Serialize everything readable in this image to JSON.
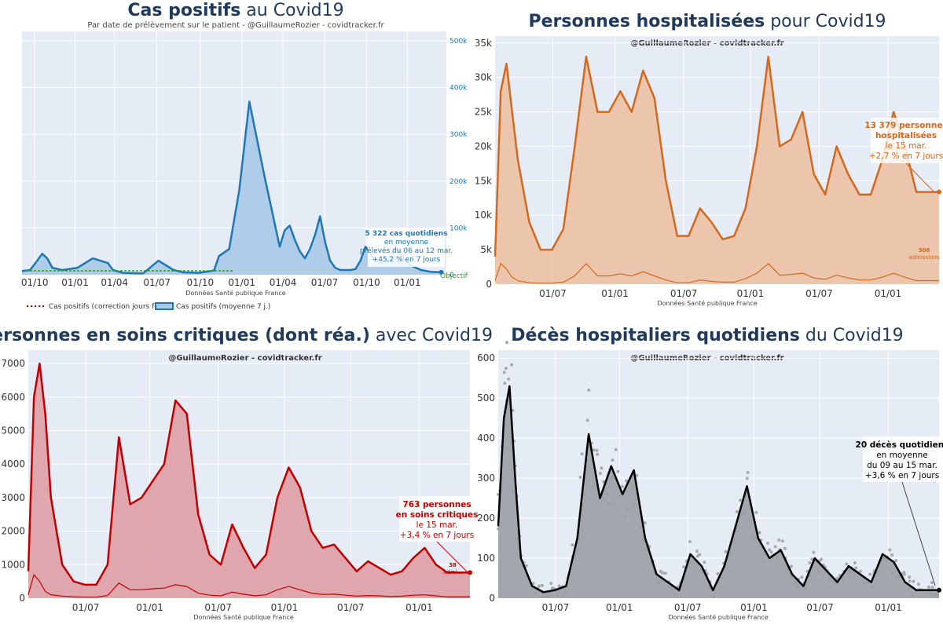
{
  "colors": {
    "panel_bg": "#e5ecf6",
    "grid": "#ffffff",
    "cases": "#1f77b4",
    "cases_fill": "#a9c9e8",
    "hosp": "#d2691e",
    "hosp_fill": "#ecc0a0",
    "icu": "#c00000",
    "icu_fill": "#df9aa0",
    "deaths": "#000000",
    "deaths_fill": "#9a9ea5",
    "deaths_dots": "#a9a9b0",
    "objective": "#2ca02c",
    "title": "#1f3a5c"
  },
  "panels": {
    "cases": {
      "title_bold": "Cas positifs",
      "title_rest": " au Covid19",
      "subtitle": "Par date de prélèvement sur le patient - @GuillaumeRozier - covidtracker.fr",
      "source": "Données Santé publique France",
      "objective_label": "Objectif",
      "legend": [
        "Cas positifs (correction jours fériés)",
        "Cas positifs (moyenne 7 j.)"
      ],
      "annotation": [
        "5 322 cas quotidiens",
        "en moyenne",
        "prélevés du 06 au 12 mar.",
        "+45,2 % en 7 jours"
      ],
      "chart_data": {
        "type": "area",
        "x_ticks": [
          "01/10",
          "01/01",
          "01/04",
          "01/07",
          "01/10",
          "01/01",
          "01/04",
          "01/07",
          "01/10",
          "01/01"
        ],
        "y_ticks": [
          "0",
          "100k",
          "200k",
          "300k",
          "400k",
          "500k"
        ],
        "y_axis_side": "right",
        "ylim": [
          0,
          520000
        ],
        "series": [
          {
            "name": "Cas positifs (moyenne 7 j.)",
            "x": [
              0,
              8,
              15,
              20,
              25,
              30,
              40,
              55,
              70,
              85,
              90,
              100,
              120,
              135,
              150,
              160,
              175,
              190,
              195,
              205,
              215,
              225,
              240,
              255,
              260,
              265,
              270,
              275,
              280,
              285,
              290,
              295,
              300,
              305,
              310,
              315,
              320,
              325,
              330,
              335,
              340,
              345,
              350,
              355,
              360,
              365,
              370,
              375,
              380,
              385,
              390,
              395,
              400,
              405,
              415,
              430,
              440,
              450,
              460,
              470,
              480,
              490,
              498
            ],
            "values": [
              8000,
              10000,
              30000,
              45000,
              35000,
              15000,
              10000,
              15000,
              35000,
              25000,
              10000,
              4000,
              3000,
              30000,
              10000,
              5000,
              4000,
              9000,
              40000,
              55000,
              180000,
              370000,
              210000,
              60000,
              95000,
              105000,
              75000,
              50000,
              35000,
              55000,
              85000,
              125000,
              70000,
              30000,
              15000,
              10000,
              10000,
              10000,
              12000,
              30000,
              60000,
              45000,
              30000,
              25000,
              30000,
              40000,
              60000,
              45000,
              30000,
              20000,
              15000,
              10000,
              8000,
              6000,
              5322,
              5322,
              5322,
              5322,
              5322,
              5322,
              5322,
              5322,
              5322
            ]
          }
        ]
      }
    },
    "hosp": {
      "title_bold": "Personnes hospitalisées",
      "title_rest": " pour Covid19",
      "credit": "@GuillaumeRozier - covidtracker.fr",
      "source": "Données Santé publique France",
      "annotation": [
        "13 379 personnes",
        "hospitalisées",
        "le 15 mar.",
        "+2,7 % en 7 jours"
      ],
      "admissions_label": [
        "508",
        "admissions"
      ],
      "chart_data": {
        "type": "area",
        "x_ticks": [
          "01/07",
          "01/01",
          "01/07",
          "01/01",
          "01/07",
          "01/01"
        ],
        "y_ticks": [
          "0",
          "5k",
          "10k",
          "15k",
          "20k",
          "25k",
          "30k",
          "35k"
        ],
        "ylim": [
          0,
          36000
        ],
        "series": [
          {
            "name": "Hospitalisations",
            "x": [
              0,
              5,
              10,
              15,
              20,
              30,
              40,
              50,
              60,
              70,
              80,
              90,
              100,
              110,
              120,
              130,
              140,
              150,
              160,
              170,
              180,
              190,
              200,
              210,
              220,
              230,
              240,
              250,
              260,
              270,
              280,
              290,
              300,
              310,
              320,
              330,
              340,
              350,
              360,
              370,
              380,
              390,
              400,
              410,
              420,
              430,
              440,
              450,
              460,
              470,
              480,
              490,
              500
            ],
            "values": [
              4000,
              28000,
              32000,
              25000,
              18000,
              9000,
              5000,
              5000,
              8000,
              20000,
              33000,
              25000,
              25000,
              28000,
              25000,
              31000,
              27000,
              15000,
              7000,
              7000,
              11000,
              9000,
              6500,
              7000,
              11000,
              20000,
              33000,
              20000,
              21000,
              25000,
              16000,
              13000,
              20000,
              16000,
              13000,
              13000,
              18000,
              25000,
              20000,
              13379,
              13379,
              13379,
              13379,
              13379,
              13379,
              13379,
              13379,
              13379,
              13379,
              13379,
              13379,
              13379,
              13379
            ]
          },
          {
            "name": "Admissions",
            "values": [
              500,
              3000,
              2200,
              1000,
              500,
              200,
              150,
              150,
              300,
              1200,
              3000,
              1200,
              1200,
              1500,
              1200,
              1800,
              1200,
              600,
              200,
              200,
              600,
              400,
              300,
              300,
              800,
              1600,
              3000,
              1300,
              1400,
              1600,
              900,
              700,
              1300,
              900,
              600,
              600,
              1000,
              1600,
              1000,
              508,
              508,
              508,
              508,
              508,
              508,
              508,
              508,
              508,
              508,
              508,
              508,
              508,
              508
            ]
          }
        ]
      }
    },
    "icu": {
      "title_bold": "Personnes en soins critiques (dont réa.)",
      "title_rest": " avec Covid19",
      "credit": "@GuillaumeRozier - covidtracker.fr",
      "source": "Données Santé publique France",
      "annotation": [
        "763 personnes",
        "en soins critiques",
        "le 15 mar.",
        "+3,4 % en 7 jours"
      ],
      "admissions_label": [
        "38",
        "admi..."
      ],
      "chart_data": {
        "type": "area",
        "x_ticks": [
          "01/07",
          "01/01",
          "01/07",
          "01/01",
          "01/07",
          "01/01"
        ],
        "y_ticks": [
          "0",
          "1000",
          "2000",
          "3000",
          "4000",
          "5000",
          "6000",
          "7000"
        ],
        "ylim": [
          0,
          7400
        ],
        "series": [
          {
            "name": "Soins critiques",
            "x": [
              0,
              5,
              10,
              15,
              20,
              30,
              40,
              50,
              60,
              70,
              80,
              90,
              100,
              110,
              120,
              130,
              140,
              150,
              160,
              170,
              180,
              190,
              200,
              210,
              220,
              230,
              240,
              250,
              260,
              270,
              280,
              290,
              300,
              310,
              320,
              330,
              340,
              350,
              360,
              370,
              380,
              390,
              400,
              410,
              420,
              430,
              440,
              450,
              460,
              470,
              480,
              490,
              500
            ],
            "values": [
              800,
              6000,
              7000,
              5500,
              3000,
              1000,
              500,
              400,
              400,
              1000,
              4800,
              2800,
              3000,
              3500,
              4000,
              5900,
              5500,
              2500,
              1300,
              1000,
              2200,
              1500,
              900,
              1300,
              3000,
              3900,
              3300,
              2000,
              1500,
              1600,
              1200,
              800,
              1100,
              900,
              700,
              800,
              1200,
              1500,
              1000,
              763,
              763,
              763,
              763,
              763,
              763,
              763,
              763,
              763,
              763,
              763,
              763,
              763,
              763
            ]
          },
          {
            "name": "Admissions",
            "values": [
              100,
              700,
              500,
              200,
              100,
              60,
              40,
              30,
              30,
              80,
              450,
              250,
              250,
              280,
              300,
              400,
              350,
              150,
              90,
              70,
              180,
              120,
              70,
              100,
              250,
              350,
              250,
              150,
              110,
              120,
              90,
              60,
              80,
              70,
              50,
              60,
              90,
              100,
              70,
              38,
              38,
              38,
              38,
              38,
              38,
              38,
              38,
              38,
              38,
              38,
              38,
              38,
              38
            ]
          }
        ]
      }
    },
    "deaths": {
      "title_bold": "Décès hospitaliers quotidiens",
      "title_rest": " du Covid19",
      "credit": "@GuillaumeRozier - covidtracker.fr",
      "source": "Données Santé publique France",
      "annotation": [
        "20 décès quotidiens",
        "en moyenne",
        "du 09 au 15 mar.",
        "+3,6 % en 7 jours"
      ],
      "chart_data": {
        "type": "area",
        "x_ticks": [
          "01/07",
          "01/01",
          "01/07",
          "01/01",
          "01/07",
          "01/01"
        ],
        "y_ticks": [
          "0",
          "100",
          "200",
          "300",
          "400",
          "500",
          "600"
        ],
        "ylim": [
          0,
          620
        ],
        "series": [
          {
            "name": "Décès (moyenne 7 j.)",
            "x": [
              0,
              5,
              10,
              15,
              20,
              30,
              40,
              50,
              60,
              70,
              80,
              90,
              100,
              110,
              120,
              130,
              140,
              150,
              160,
              170,
              180,
              190,
              200,
              210,
              220,
              230,
              240,
              250,
              260,
              270,
              280,
              290,
              300,
              310,
              320,
              330,
              340,
              350,
              360,
              370,
              380,
              390,
              400,
              410,
              420,
              430,
              440,
              450,
              460,
              470,
              480,
              490,
              500
            ],
            "values": [
              180,
              450,
              530,
              300,
              100,
              30,
              15,
              20,
              30,
              150,
              410,
              250,
              330,
              260,
              320,
              150,
              60,
              40,
              20,
              110,
              80,
              20,
              80,
              180,
              280,
              150,
              100,
              120,
              60,
              30,
              100,
              70,
              40,
              80,
              60,
              40,
              110,
              90,
              40,
              20,
              20,
              20,
              20,
              20,
              20,
              20,
              20,
              20,
              20,
              20,
              20,
              20,
              20
            ]
          }
        ]
      }
    }
  }
}
